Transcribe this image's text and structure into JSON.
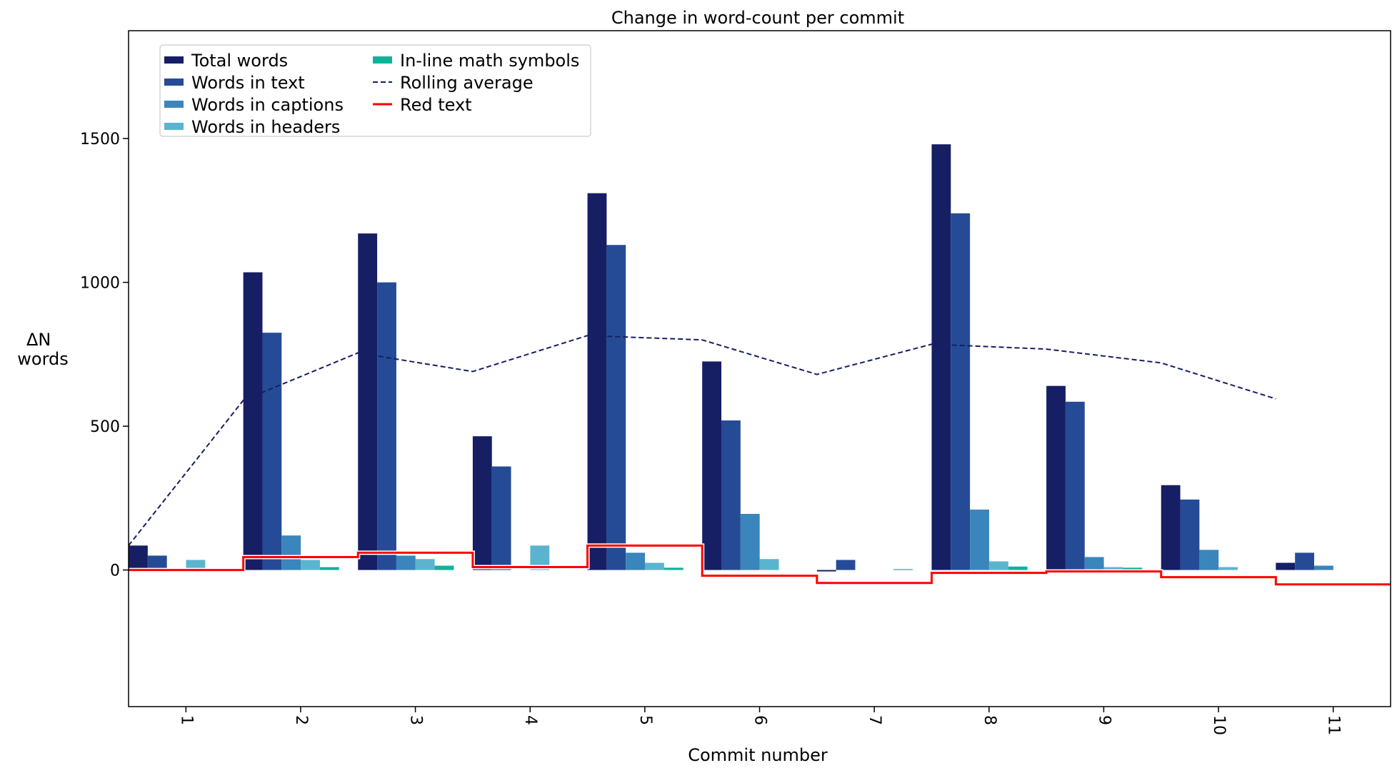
{
  "chart_data": {
    "type": "bar",
    "title": "Change in word-count per commit",
    "xlabel": "Commit number",
    "ylabel": "ΔN\nwords",
    "categories": [
      "1",
      "2",
      "3",
      "4",
      "5",
      "6",
      "7",
      "8",
      "9",
      "10",
      "11"
    ],
    "ylim": [
      -475,
      1875
    ],
    "yticks": [
      0,
      500,
      1000,
      1500
    ],
    "grid": false,
    "legend_position": "top-left",
    "series": [
      {
        "name": "Total words",
        "kind": "bar",
        "color": "#161e64",
        "values": [
          85,
          1035,
          1170,
          465,
          1310,
          725,
          -5,
          1480,
          640,
          295,
          25
        ]
      },
      {
        "name": "Words in text",
        "kind": "bar",
        "color": "#264b96",
        "values": [
          50,
          825,
          1000,
          360,
          1130,
          520,
          35,
          1240,
          585,
          245,
          60
        ]
      },
      {
        "name": "Words in captions",
        "kind": "bar",
        "color": "#3a85bb",
        "values": [
          0,
          120,
          50,
          0,
          60,
          195,
          0,
          210,
          45,
          70,
          15
        ]
      },
      {
        "name": "Words in headers",
        "kind": "bar",
        "color": "#5ab4cf",
        "values": [
          35,
          35,
          38,
          85,
          25,
          38,
          0,
          30,
          10,
          10,
          0
        ]
      },
      {
        "name": "In-line math symbols",
        "kind": "bar",
        "color": "#0fb399",
        "values": [
          0,
          10,
          15,
          0,
          8,
          0,
          3,
          12,
          8,
          0,
          0
        ]
      },
      {
        "name": "Rolling average",
        "kind": "line",
        "style": "dashed",
        "color": "#161e64",
        "x": [
          0.5,
          1.5,
          2.5,
          3.5,
          4.5,
          5.5,
          6.5,
          7.5,
          8.5,
          9.5,
          10.5
        ],
        "values": [
          85,
          590,
          755,
          690,
          815,
          800,
          680,
          785,
          768,
          720,
          595
        ]
      },
      {
        "name": "Red text",
        "kind": "step",
        "color": "#ff0000",
        "values": [
          0,
          45,
          60,
          10,
          85,
          -20,
          -45,
          -10,
          -5,
          -25,
          -50
        ]
      }
    ]
  }
}
